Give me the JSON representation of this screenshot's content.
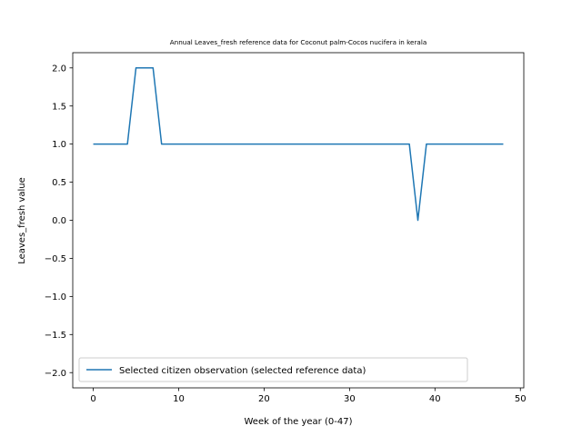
{
  "chart_data": {
    "type": "line",
    "title": "Annual Leaves_fresh reference data for Coconut palm-Cocos nucifera in kerala",
    "xlabel": "Week of the year (0-47)",
    "ylabel": "Leaves_fresh value",
    "xlim": [
      -2.4,
      50.4
    ],
    "ylim": [
      -2.2,
      2.2
    ],
    "x_ticks": [
      0,
      10,
      20,
      30,
      40,
      50
    ],
    "y_ticks": [
      2.0,
      1.5,
      1.0,
      0.5,
      0.0,
      -0.5,
      -1.0,
      -1.5,
      -2.0
    ],
    "x_tick_labels": [
      "0",
      "10",
      "20",
      "30",
      "40",
      "50"
    ],
    "y_tick_labels": [
      "2.0",
      "1.5",
      "1.0",
      "0.5",
      "0.0",
      "−0.5",
      "−1.0",
      "−1.5",
      "−2.0"
    ],
    "grid": false,
    "legend_position": "lower-left",
    "series": [
      {
        "name": "Selected citizen observation (selected reference data)",
        "color": "#1f77b4",
        "x": [
          0,
          1,
          2,
          3,
          4,
          5,
          6,
          7,
          8,
          9,
          10,
          11,
          12,
          13,
          14,
          15,
          16,
          17,
          18,
          19,
          20,
          21,
          22,
          23,
          24,
          25,
          26,
          27,
          28,
          29,
          30,
          31,
          32,
          33,
          34,
          35,
          36,
          37,
          38,
          39,
          40,
          41,
          42,
          43,
          44,
          45,
          46,
          47,
          48
        ],
        "y": [
          1,
          1,
          1,
          1,
          1,
          2,
          2,
          2,
          1,
          1,
          1,
          1,
          1,
          1,
          1,
          1,
          1,
          1,
          1,
          1,
          1,
          1,
          1,
          1,
          1,
          1,
          1,
          1,
          1,
          1,
          1,
          1,
          1,
          1,
          1,
          1,
          1,
          1,
          0,
          1,
          1,
          1,
          1,
          1,
          1,
          1,
          1,
          1,
          1
        ]
      }
    ]
  }
}
